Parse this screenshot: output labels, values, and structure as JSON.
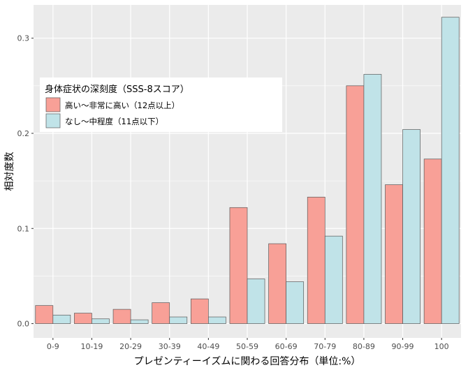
{
  "chart_data": {
    "type": "bar",
    "xlabel": "プレゼンティーイズムに関わる回答分布（単位:%）",
    "ylabel": "相対度数",
    "ylim": [
      -0.015,
      0.335
    ],
    "yticks": [
      0.0,
      0.1,
      0.2,
      0.3
    ],
    "ytick_labels": [
      "0.0",
      "0.1",
      "0.2",
      "0.3"
    ],
    "grid": true,
    "legend_position": "top-left",
    "legend_title": "身体症状の深刻度（SSS-8スコア）",
    "categories": [
      "0-9",
      "10-19",
      "20-29",
      "30-39",
      "40-49",
      "50-59",
      "60-69",
      "70-79",
      "80-89",
      "90-99",
      "100"
    ],
    "series": [
      {
        "name": "高い～非常に高い（12点以上）",
        "color": "#f8a097",
        "values": [
          0.019,
          0.011,
          0.015,
          0.022,
          0.026,
          0.122,
          0.084,
          0.133,
          0.25,
          0.146,
          0.173
        ]
      },
      {
        "name": "なし～中程度（11点以下）",
        "color": "#c0e3e8",
        "values": [
          0.009,
          0.005,
          0.004,
          0.007,
          0.007,
          0.047,
          0.044,
          0.092,
          0.262,
          0.204,
          0.322
        ]
      }
    ],
    "colors": {
      "panel_background": "#ebebeb",
      "grid": "#ffffff",
      "bar_outline": "#595959"
    }
  }
}
